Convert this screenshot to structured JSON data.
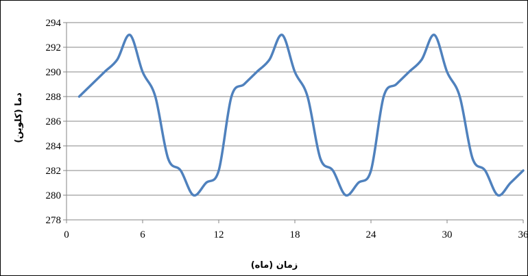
{
  "chart_data": {
    "type": "line",
    "title": "",
    "xlabel": "زمان (ماه)",
    "ylabel": "دما (کلوین)",
    "xlim": [
      0,
      36
    ],
    "ylim": [
      278,
      294
    ],
    "xticks": [
      0,
      6,
      12,
      18,
      24,
      30,
      36
    ],
    "yticks": [
      278,
      280,
      282,
      284,
      286,
      288,
      290,
      292,
      294
    ],
    "x_tick_labels": [
      "0",
      "6",
      "12",
      "18",
      "24",
      "30",
      "36"
    ],
    "y_tick_labels": [
      "278",
      "280",
      "282",
      "284",
      "286",
      "288",
      "290",
      "292",
      "294"
    ],
    "grid": "horizontal",
    "legend": "none",
    "series": [
      {
        "color": "#4f81bd",
        "x": [
          1,
          2,
          3,
          4,
          5,
          6,
          7,
          8,
          9,
          10,
          11,
          12,
          13,
          14,
          15,
          16,
          17,
          18,
          19,
          20,
          21,
          22,
          23,
          24,
          25,
          26,
          27,
          28,
          29,
          30,
          31,
          32,
          33,
          34,
          35,
          36
        ],
        "values": [
          288,
          289,
          290,
          291,
          293,
          290,
          288,
          283,
          282,
          280,
          281,
          282,
          288,
          289,
          290,
          291,
          293,
          290,
          288,
          283,
          282,
          280,
          281,
          282,
          288,
          289,
          290,
          291,
          293,
          290,
          288,
          283,
          282,
          280,
          281,
          282
        ]
      }
    ]
  }
}
